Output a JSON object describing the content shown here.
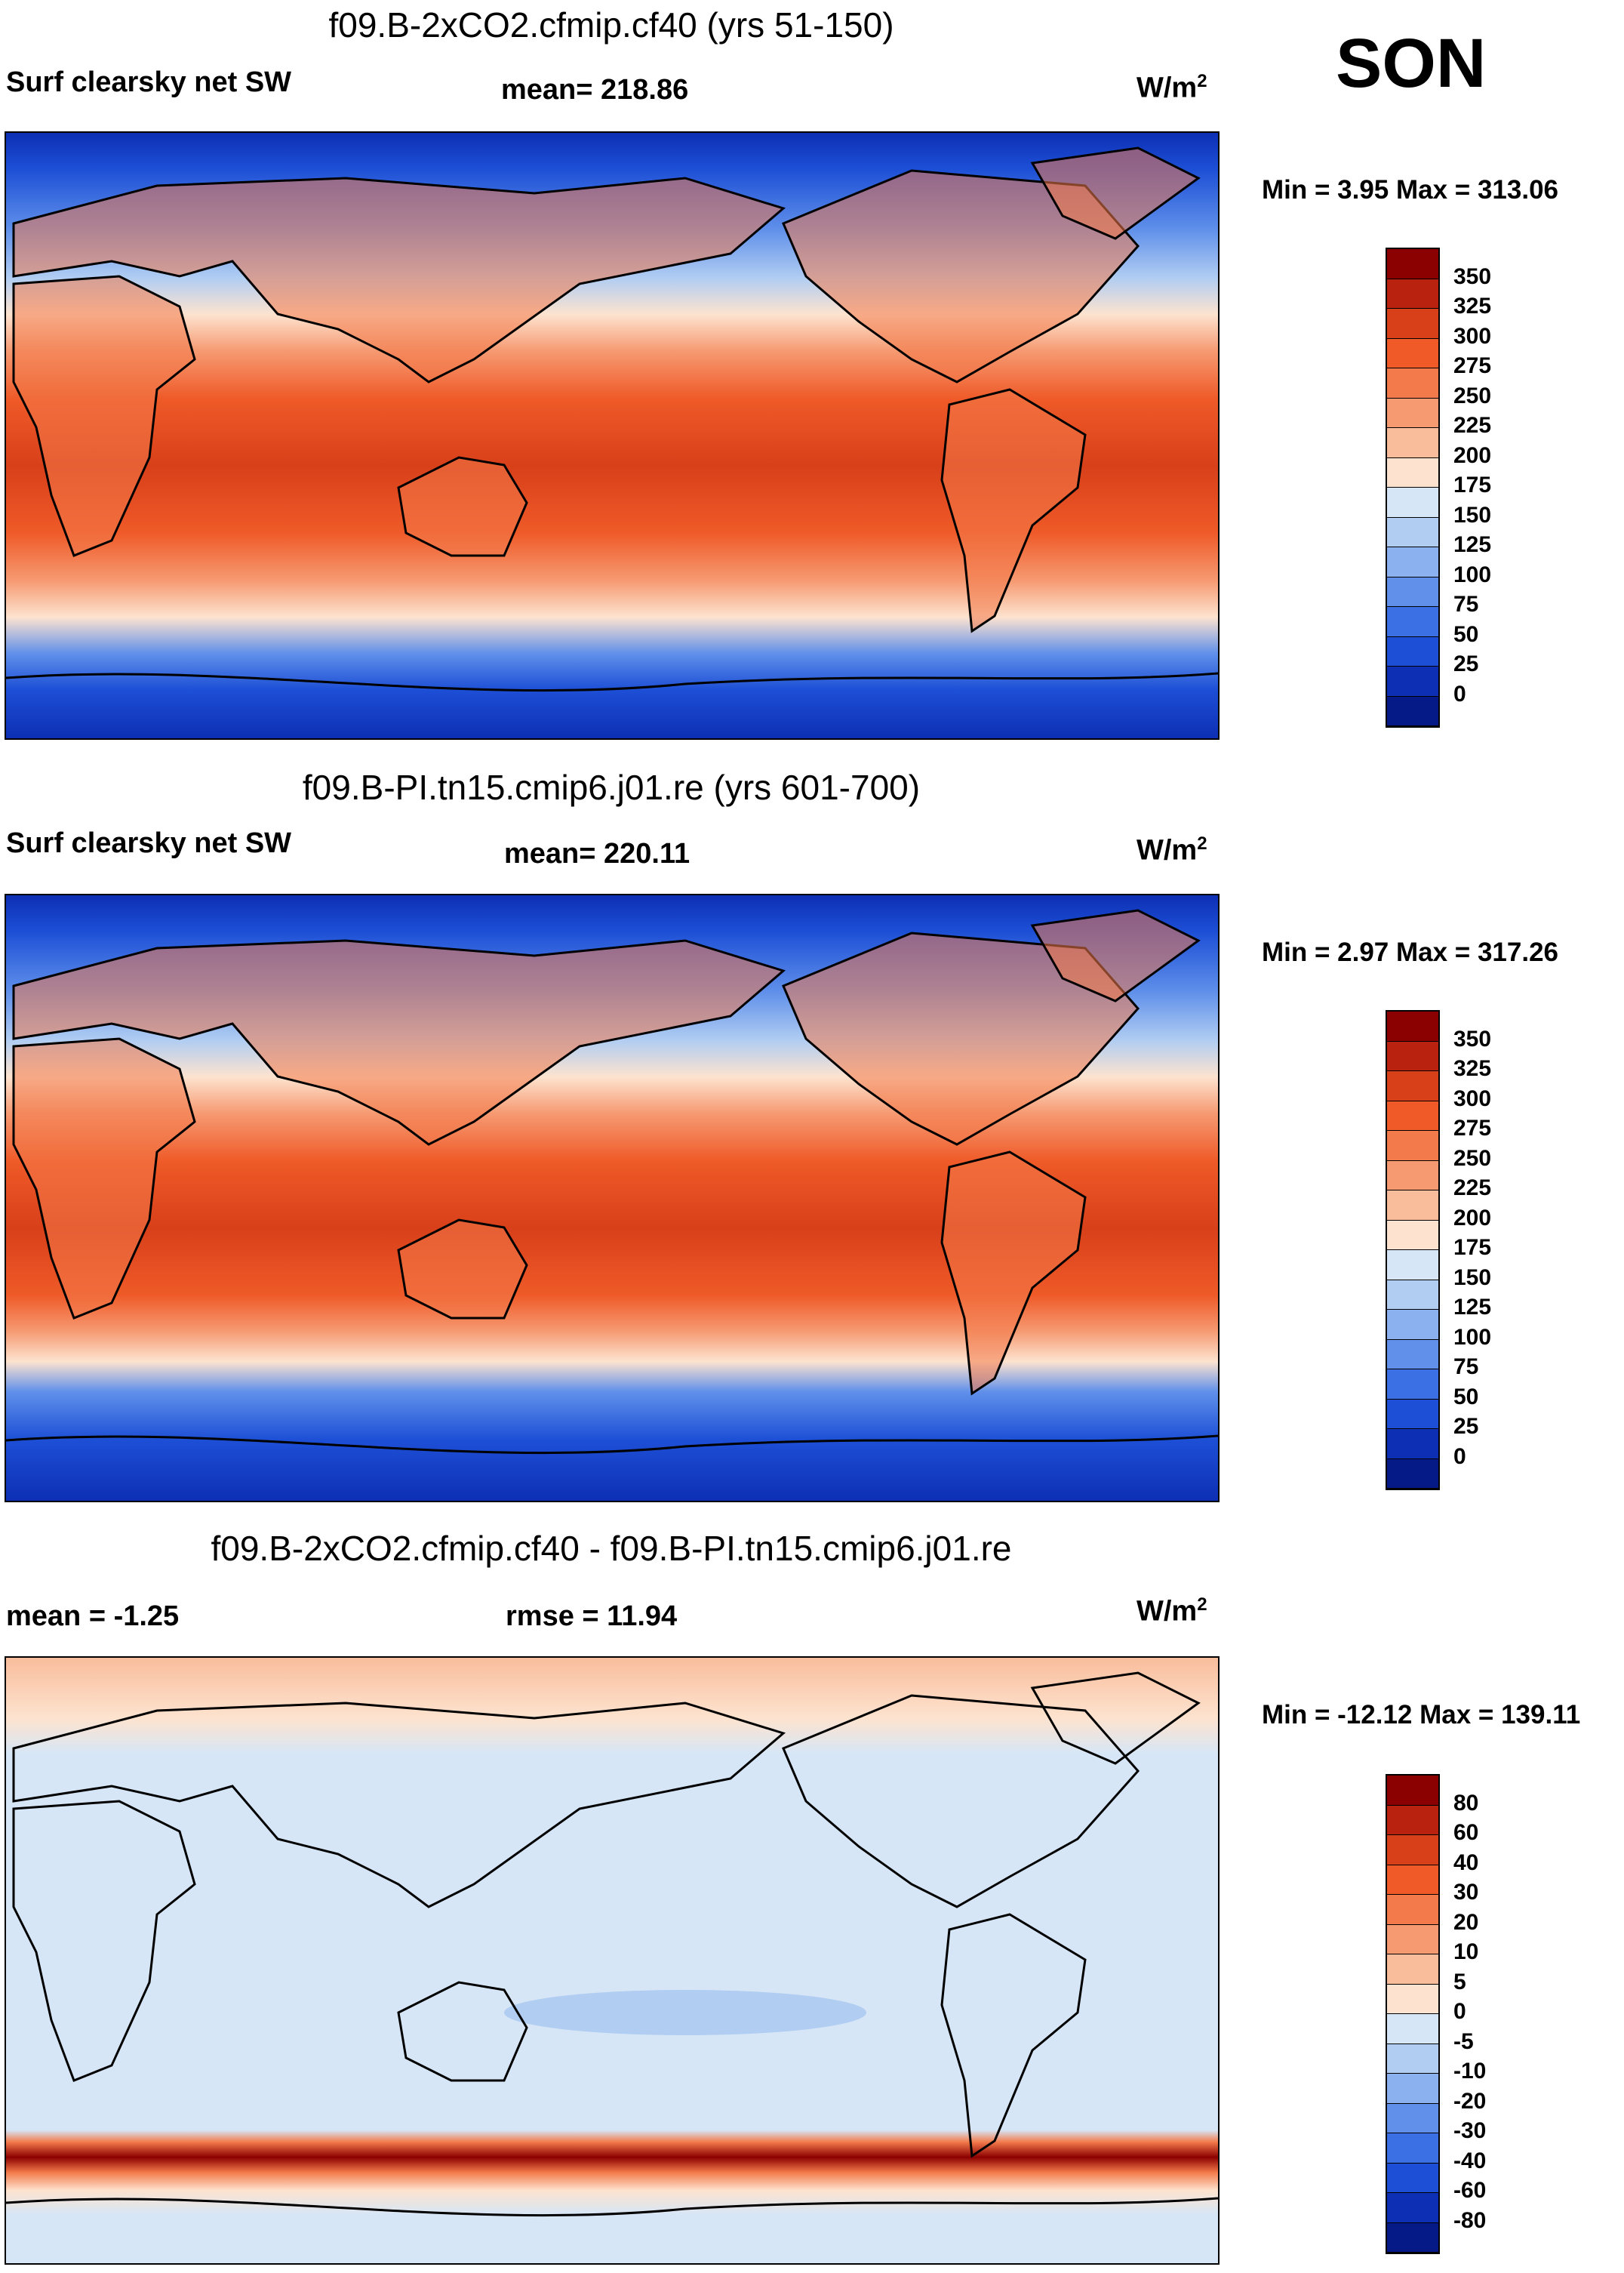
{
  "season": "SON",
  "panels": [
    {
      "title": "f09.B-2xCO2.cfmip.cf40 (yrs 51-150)",
      "left_label": "Surf clearsky net SW",
      "center_label": "mean= 218.86",
      "units_base": "W/m",
      "units_exp": "2",
      "minmax": "Min =   3.95 Max = 313.06",
      "colorbar": {
        "ticks": [
          "350",
          "325",
          "300",
          "275",
          "250",
          "225",
          "200",
          "175",
          "150",
          "125",
          "100",
          "75",
          "50",
          "25",
          "0"
        ],
        "colors": [
          "#8b0000",
          "#b8220e",
          "#d8401a",
          "#ef5a28",
          "#f37a4a",
          "#f69a72",
          "#f9bd9c",
          "#fde3cf",
          "#d6e6f7",
          "#b1cdf2",
          "#8bb1ee",
          "#6090ea",
          "#3a70e4",
          "#1d4fd6",
          "#0d2fb4",
          "#051a86"
        ]
      },
      "map": {
        "equator_color": "#d8401a",
        "polar_color": "#0d2fb4",
        "land_tint": "#f37a4a"
      }
    },
    {
      "title": "f09.B-PI.tn15.cmip6.j01.re (yrs 601-700)",
      "left_label": "Surf clearsky net SW",
      "center_label": "mean= 220.11",
      "units_base": "W/m",
      "units_exp": "2",
      "minmax": "Min =   2.97 Max = 317.26",
      "colorbar": {
        "ticks": [
          "350",
          "325",
          "300",
          "275",
          "250",
          "225",
          "200",
          "175",
          "150",
          "125",
          "100",
          "75",
          "50",
          "25",
          "0"
        ],
        "colors": [
          "#8b0000",
          "#b8220e",
          "#d8401a",
          "#ef5a28",
          "#f37a4a",
          "#f69a72",
          "#f9bd9c",
          "#fde3cf",
          "#d6e6f7",
          "#b1cdf2",
          "#8bb1ee",
          "#6090ea",
          "#3a70e4",
          "#1d4fd6",
          "#0d2fb4",
          "#051a86"
        ]
      },
      "map": {
        "equator_color": "#d8401a",
        "polar_color": "#0d2fb4",
        "land_tint": "#f37a4a"
      }
    },
    {
      "title": "f09.B-2xCO2.cfmip.cf40 - f09.B-PI.tn15.cmip6.j01.re",
      "left_label": "mean =  -1.25",
      "center_label": "rmse =  11.94",
      "units_base": "W/m",
      "units_exp": "2",
      "minmax": "Min = -12.12 Max = 139.11",
      "colorbar": {
        "ticks": [
          "80",
          "60",
          "40",
          "30",
          "20",
          "10",
          "5",
          "0",
          "-5",
          "-10",
          "-20",
          "-30",
          "-40",
          "-60",
          "-80"
        ],
        "colors": [
          "#8b0000",
          "#b8220e",
          "#d8401a",
          "#ef5a28",
          "#f37a4a",
          "#f69a72",
          "#f9bd9c",
          "#fde3cf",
          "#d6e6f7",
          "#b1cdf2",
          "#8bb1ee",
          "#6090ea",
          "#3a70e4",
          "#1d4fd6",
          "#0d2fb4",
          "#051a86"
        ]
      },
      "map": {
        "equator_color": "#d6e6f7",
        "polar_color": "#f9bd9c",
        "land_tint": "#d6e6f7"
      }
    }
  ]
}
